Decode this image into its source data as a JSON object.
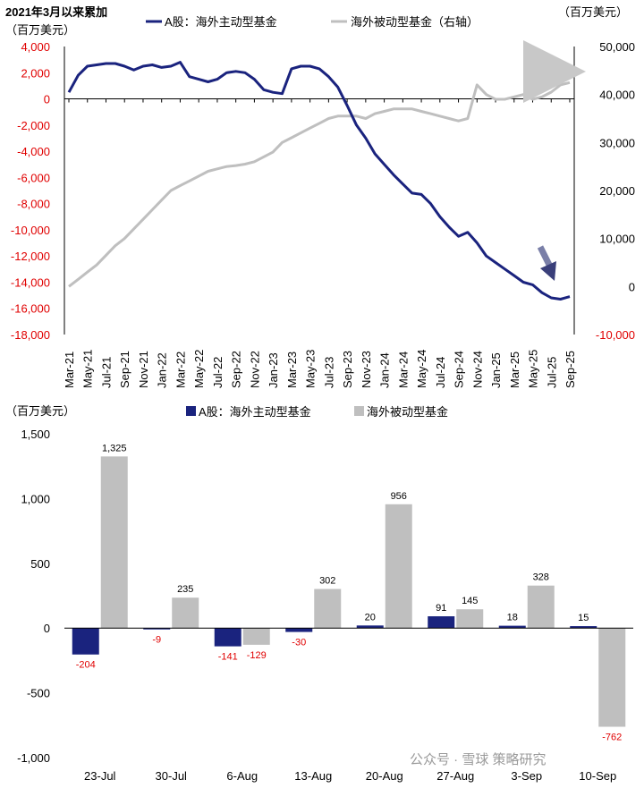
{
  "chart_data": [
    {
      "type": "line",
      "title": "2021年3月以来累加",
      "ylabel": "（百万美元）",
      "y2label": "（百万美元）",
      "x_categories": [
        "Mar-21",
        "May-21",
        "Jul-21",
        "Sep-21",
        "Nov-21",
        "Jan-22",
        "Mar-22",
        "May-22",
        "Jul-22",
        "Sep-22",
        "Nov-22",
        "Jan-23",
        "Mar-23",
        "May-23",
        "Jul-23",
        "Sep-23",
        "Nov-23",
        "Jan-24",
        "Mar-24",
        "May-24",
        "Jul-24",
        "Sep-24",
        "Nov-24",
        "Jan-25",
        "Mar-25",
        "May-25",
        "Jul-25",
        "Sep-25"
      ],
      "ylim": [
        -18000,
        4000
      ],
      "y_ticks": [
        -18000,
        -16000,
        -14000,
        -12000,
        -10000,
        -8000,
        -6000,
        -4000,
        -2000,
        0,
        2000,
        4000
      ],
      "y_tick_labels": [
        "-18,000",
        "-16,000",
        "-14,000",
        "-12,000",
        "-10,000",
        "-8,000",
        "-6,000",
        "-4,000",
        "-2,000",
        "0",
        "2,000",
        "4,000"
      ],
      "y2lim": [
        -10000,
        50000
      ],
      "y2_ticks": [
        -10000,
        0,
        10000,
        20000,
        30000,
        40000,
        50000
      ],
      "y2_tick_labels": [
        "-10,000",
        "0",
        "10,000",
        "20,000",
        "30,000",
        "40,000",
        "50,000"
      ],
      "legend_position": "top",
      "series": [
        {
          "name": "A股：海外主动型基金",
          "axis": "left",
          "color": "#1a237e",
          "x": [
            "Mar-21",
            "Apr-21",
            "May-21",
            "Jun-21",
            "Jul-21",
            "Aug-21",
            "Sep-21",
            "Oct-21",
            "Nov-21",
            "Dec-21",
            "Jan-22",
            "Feb-22",
            "Mar-22",
            "Apr-22",
            "May-22",
            "Jun-22",
            "Jul-22",
            "Aug-22",
            "Sep-22",
            "Oct-22",
            "Nov-22",
            "Dec-22",
            "Jan-23",
            "Feb-23",
            "Mar-23",
            "Apr-23",
            "May-23",
            "Jun-23",
            "Jul-23",
            "Aug-23",
            "Sep-23",
            "Oct-23",
            "Nov-23",
            "Dec-23",
            "Jan-24",
            "Feb-24",
            "Mar-24",
            "Apr-24",
            "May-24",
            "Jun-24",
            "Jul-24",
            "Aug-24",
            "Sep-24",
            "Oct-24",
            "Nov-24",
            "Dec-24",
            "Jan-25",
            "Feb-25",
            "Mar-25",
            "Apr-25",
            "May-25",
            "Jun-25",
            "Jul-25",
            "Aug-25",
            "Sep-25"
          ],
          "values": [
            500,
            1800,
            2500,
            2600,
            2700,
            2700,
            2500,
            2200,
            2500,
            2600,
            2400,
            2500,
            2800,
            1700,
            1500,
            1300,
            1500,
            2000,
            2100,
            2000,
            1500,
            700,
            500,
            400,
            2300,
            2500,
            2500,
            2300,
            1700,
            900,
            -500,
            -2000,
            -3000,
            -4200,
            -5000,
            -5800,
            -6500,
            -7200,
            -7300,
            -8000,
            -9000,
            -9800,
            -10500,
            -10200,
            -11000,
            -12000,
            -12500,
            -13000,
            -13500,
            -14000,
            -14200,
            -14800,
            -15200,
            -15300,
            -15100
          ]
        },
        {
          "name": "海外被动型基金（右轴）",
          "axis": "right",
          "color": "#bfbfbf",
          "x": [
            "Mar-21",
            "Apr-21",
            "May-21",
            "Jun-21",
            "Jul-21",
            "Aug-21",
            "Sep-21",
            "Oct-21",
            "Nov-21",
            "Dec-21",
            "Jan-22",
            "Feb-22",
            "Mar-22",
            "Apr-22",
            "May-22",
            "Jun-22",
            "Jul-22",
            "Aug-22",
            "Sep-22",
            "Oct-22",
            "Nov-22",
            "Dec-22",
            "Jan-23",
            "Feb-23",
            "Mar-23",
            "Apr-23",
            "May-23",
            "Jun-23",
            "Jul-23",
            "Aug-23",
            "Sep-23",
            "Oct-23",
            "Nov-23",
            "Dec-23",
            "Jan-24",
            "Feb-24",
            "Mar-24",
            "Apr-24",
            "May-24",
            "Jun-24",
            "Jul-24",
            "Aug-24",
            "Sep-24",
            "Oct-24",
            "Nov-24",
            "Dec-24",
            "Jan-25",
            "Feb-25",
            "Mar-25",
            "Apr-25",
            "May-25",
            "Jun-25",
            "Jul-25",
            "Aug-25",
            "Sep-25"
          ],
          "values": [
            0,
            1500,
            3000,
            4500,
            6500,
            8500,
            10000,
            12000,
            14000,
            16000,
            18000,
            20000,
            21000,
            22000,
            23000,
            24000,
            24500,
            25000,
            25200,
            25500,
            26000,
            27000,
            28000,
            30000,
            31000,
            32000,
            33000,
            34000,
            35000,
            35500,
            35500,
            35500,
            35000,
            36000,
            36500,
            37000,
            37000,
            37000,
            36500,
            36000,
            35500,
            35000,
            34500,
            35000,
            42000,
            40000,
            39000,
            39000,
            39500,
            40000,
            39000,
            39500,
            40500,
            42000,
            42500
          ]
        }
      ]
    },
    {
      "type": "bar",
      "ylabel": "（百万美元）",
      "categories": [
        "23-Jul",
        "30-Jul",
        "6-Aug",
        "13-Aug",
        "20-Aug",
        "27-Aug",
        "3-Sep",
        "10-Sep"
      ],
      "ylim": [
        -1000,
        1500
      ],
      "y_ticks": [
        -1000,
        -500,
        0,
        500,
        1000,
        1500
      ],
      "y_tick_labels": [
        "-1,000",
        "-500",
        "0",
        "500",
        "1,000",
        "1,500"
      ],
      "legend_position": "top",
      "series": [
        {
          "name": "A股：海外主动型基金",
          "color": "#1a237e",
          "values": [
            -204,
            -9,
            -141,
            -30,
            20,
            91,
            18,
            15
          ],
          "labels": [
            "-204",
            "-9",
            "-141",
            "-30",
            "20",
            "91",
            "18",
            "15"
          ]
        },
        {
          "name": "海外被动型基金",
          "color": "#bfbfbf",
          "values": [
            1325,
            235,
            -129,
            302,
            956,
            145,
            328,
            -762
          ],
          "labels": [
            "1,325",
            "235",
            "-129",
            "302",
            "956",
            "145",
            "328",
            "-762"
          ]
        }
      ]
    }
  ],
  "watermark": "公众号 · 雪球 策略研究"
}
